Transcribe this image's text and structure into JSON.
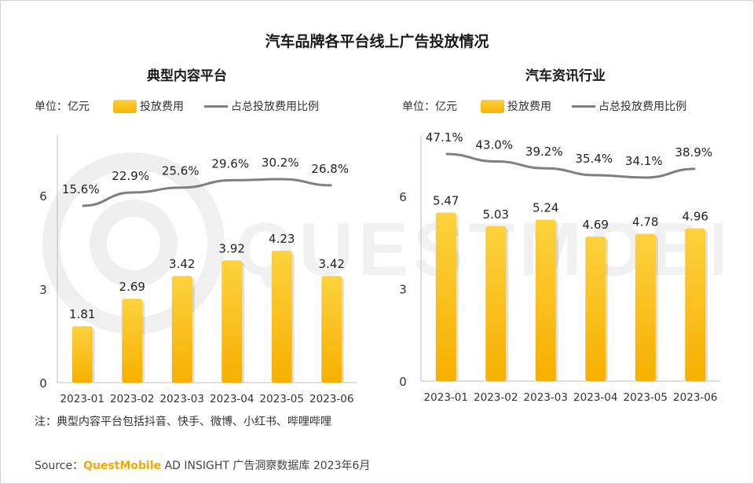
{
  "title": "汽车品牌各平台线上广告投放情况",
  "legend": {
    "unit": "单位：亿元",
    "bar_label": "投放费用",
    "line_label": "占总投放费用比例"
  },
  "watermark_text": "QUESTMOBILE",
  "colors": {
    "bar_top": "#fdd23e",
    "bar_bottom": "#f6b000",
    "line": "#7f7f7f",
    "axis": "#bfbfbf",
    "brand": "#f5a800"
  },
  "chart_data": [
    {
      "type": "bar",
      "title": "典型内容平台",
      "categories": [
        "2023-01",
        "2023-02",
        "2023-03",
        "2023-04",
        "2023-05",
        "2023-06"
      ],
      "series": [
        {
          "name": "投放费用",
          "values": [
            1.81,
            2.69,
            3.42,
            3.92,
            4.23,
            3.42
          ],
          "labels": [
            "1.81",
            "2.69",
            "3.42",
            "3.92",
            "4.23",
            "3.42"
          ]
        },
        {
          "name": "占总投放费用比例",
          "type": "line",
          "values": [
            15.6,
            22.9,
            25.6,
            29.6,
            30.2,
            26.8
          ],
          "labels": [
            "15.6%",
            "22.9%",
            "25.6%",
            "29.6%",
            "30.2%",
            "26.8%"
          ]
        }
      ],
      "yticks": [
        "0",
        "3",
        "6"
      ],
      "ylim": [
        0,
        8
      ]
    },
    {
      "type": "bar",
      "title": "汽车资讯行业",
      "categories": [
        "2023-01",
        "2023-02",
        "2023-03",
        "2023-04",
        "2023-05",
        "2023-06"
      ],
      "series": [
        {
          "name": "投放费用",
          "values": [
            5.47,
            5.03,
            5.24,
            4.69,
            4.78,
            4.96
          ],
          "labels": [
            "5.47",
            "5.03",
            "5.24",
            "4.69",
            "4.78",
            "4.96"
          ]
        },
        {
          "name": "占总投放费用比例",
          "type": "line",
          "values": [
            47.1,
            43.0,
            39.2,
            35.4,
            34.1,
            38.9
          ],
          "labels": [
            "47.1%",
            "43.0%",
            "39.2%",
            "35.4%",
            "34.1%",
            "38.9%"
          ]
        }
      ],
      "yticks": [
        "0",
        "3",
        "6"
      ],
      "ylim": [
        0,
        8
      ]
    }
  ],
  "note": "注：典型内容平台包括抖音、快手、微博、小红书、哔哩哔哩",
  "source": {
    "prefix": "Source：",
    "brand": "QuestMobile",
    "suffix": " AD INSIGHT 广告洞察数据库 2023年6月"
  }
}
